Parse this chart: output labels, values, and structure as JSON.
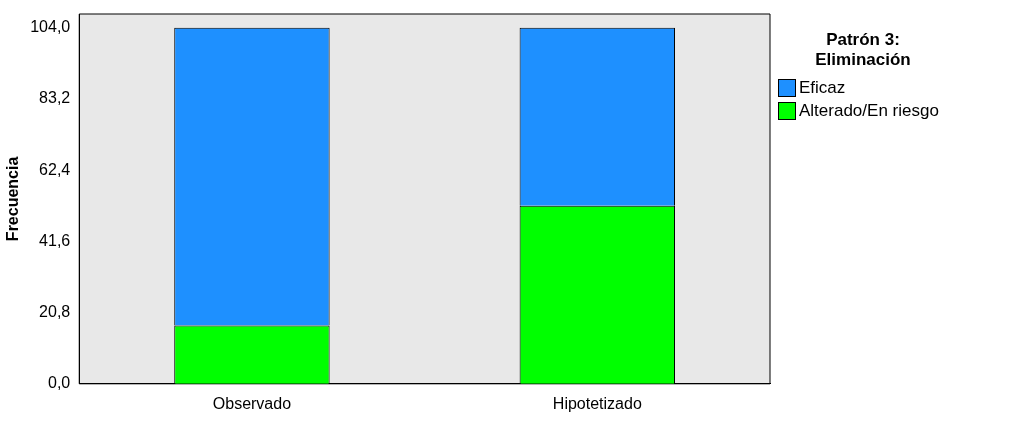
{
  "chart_data": {
    "type": "bar",
    "stacked": true,
    "ylabel": "Frecuencia",
    "legend_title": "Patrón 3: Eliminación",
    "legend": "right",
    "categories": [
      "Observado",
      "Hipotetizado"
    ],
    "series": [
      {
        "name": "Alterado/En riesgo",
        "color": "#00ff00",
        "values": [
          17,
          52
        ]
      },
      {
        "name": "Eficaz",
        "color": "#1e90ff",
        "values": [
          87,
          52
        ]
      }
    ],
    "ylim": [
      0,
      108
    ],
    "yticks": [
      {
        "value": 0,
        "label": "0,0"
      },
      {
        "value": 20.8,
        "label": "20,8"
      },
      {
        "value": 41.6,
        "label": "41,6"
      },
      {
        "value": 62.4,
        "label": "62,4"
      },
      {
        "value": 83.2,
        "label": "83,2"
      },
      {
        "value": 104,
        "label": "104,0"
      }
    ]
  }
}
